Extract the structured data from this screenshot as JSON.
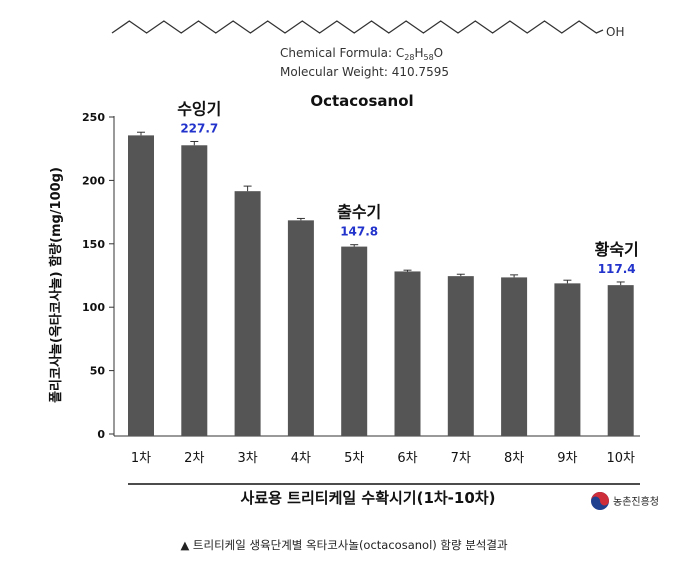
{
  "molecule": {
    "formula_label": "Chemical Formula: ",
    "formula_c": "C",
    "formula_c_sub": "28",
    "formula_h": "H",
    "formula_h_sub": "58",
    "formula_o": "O",
    "weight": "Molecular Weight: 410.7595",
    "oh": "OH"
  },
  "chart_data": {
    "type": "bar",
    "title": "Octacosanol",
    "ylabel": "폴리코사놀(옥타코사놀) 함량(mg/100g)",
    "xlabel": "사료용 트리티케일 수확시기(1차-10차)",
    "ylim": [
      0,
      250
    ],
    "yticks": [
      "0",
      "50",
      "100",
      "150",
      "200",
      "250"
    ],
    "categories": [
      "1차",
      "2차",
      "3차",
      "4차",
      "5차",
      "6차",
      "7차",
      "8차",
      "9차",
      "10차"
    ],
    "values": [
      235.5,
      227.7,
      191.5,
      168.5,
      147.8,
      128.2,
      124.5,
      123.5,
      118.8,
      117.4
    ],
    "errors": [
      2.5,
      3,
      4,
      1.5,
      1.5,
      1,
      1.5,
      2,
      2.5,
      2.5
    ],
    "bar_color": "#555555",
    "annotations": [
      {
        "category": "2차",
        "label": "수잉기",
        "value": "227.7"
      },
      {
        "category": "5차",
        "label": "출수기",
        "value": "147.8"
      },
      {
        "category": "10차",
        "label": "황숙기",
        "value": "117.4"
      }
    ],
    "annotation_value_color": "#2233cc"
  },
  "logo": {
    "text": "농촌진흥청"
  },
  "caption": "▲ 트리티케일 생육단계별 옥타코사놀(octacosanol) 함량 분석결과"
}
